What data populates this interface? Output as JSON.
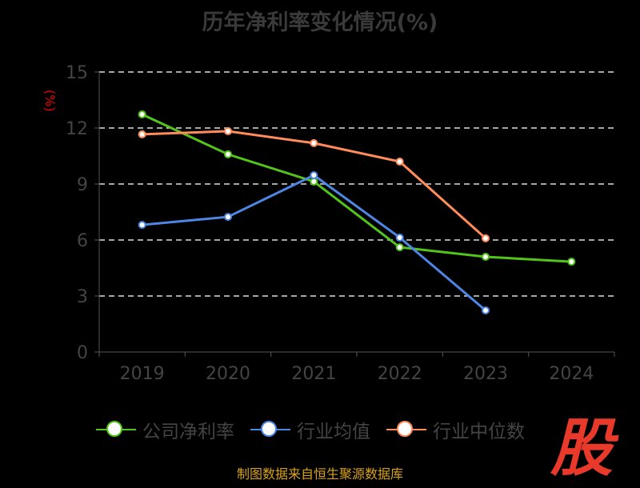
{
  "chart_data": {
    "type": "line",
    "title": "历年净利率变化情况(%)",
    "ylabel": "(%)",
    "xlabel": "",
    "categories": [
      "2019",
      "2020",
      "2021",
      "2022",
      "2023",
      "2024"
    ],
    "ylim": [
      0,
      15
    ],
    "yticks": [
      0,
      3,
      6,
      9,
      12,
      15
    ],
    "grid": true,
    "legend_position": "bottom",
    "series": [
      {
        "name": "公司净利率",
        "color": "#52c41a",
        "values": [
          12.73,
          10.59,
          9.13,
          5.61,
          5.1,
          4.84
        ]
      },
      {
        "name": "行业均值",
        "color": "#4e86e4",
        "values": [
          6.81,
          7.24,
          9.47,
          6.13,
          2.23,
          null
        ]
      },
      {
        "name": "行业中位数",
        "color": "#ff8c5a",
        "values": [
          11.66,
          11.83,
          11.19,
          10.2,
          6.09,
          null
        ]
      }
    ]
  },
  "logo_text": "股",
  "source": "制图数据来自恒生聚源数据库"
}
